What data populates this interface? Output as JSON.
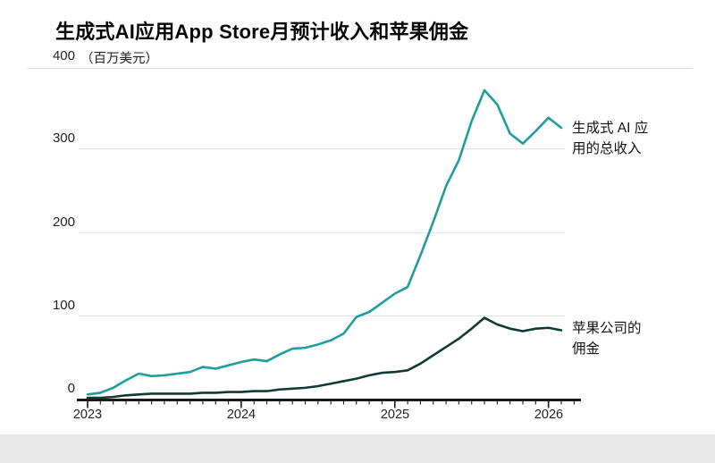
{
  "page": {
    "background": "#e9e9e9",
    "card_background": "#ffffff"
  },
  "header": {
    "title": "生成式AI应用App Store月预计收入和苹果佣金"
  },
  "y_axis": {
    "top_tick": "400",
    "unit": "（百万美元）",
    "ticks": {
      "t300": "300",
      "t200": "200",
      "t100": "100",
      "t0": "0"
    }
  },
  "x_axis": {
    "years": [
      "2023",
      "2024",
      "2025",
      "2026"
    ]
  },
  "annotations": {
    "revenue_line1": "生成式 AI 应",
    "revenue_line2": "用的总收入",
    "commission_line1": "苹果公司的",
    "commission_line2": "佣金"
  },
  "chart_data": {
    "type": "line",
    "title": "生成式AI应用App Store月预计收入和苹果佣金",
    "unit": "百万美元",
    "ylabel": "百万美元",
    "xlabel": "",
    "ylim": [
      0,
      400
    ],
    "yticks": [
      0,
      100,
      200,
      300,
      400
    ],
    "grid": true,
    "legend_position": "right-of-line-end",
    "x": [
      "2023-01",
      "2023-02",
      "2023-03",
      "2023-04",
      "2023-05",
      "2023-06",
      "2023-07",
      "2023-08",
      "2023-09",
      "2023-10",
      "2023-11",
      "2023-12",
      "2024-01",
      "2024-02",
      "2024-03",
      "2024-04",
      "2024-05",
      "2024-06",
      "2024-07",
      "2024-08",
      "2024-09",
      "2024-10",
      "2024-11",
      "2024-12",
      "2025-01",
      "2025-02",
      "2025-03",
      "2025-04",
      "2025-05",
      "2025-06",
      "2025-07",
      "2025-08",
      "2025-09",
      "2025-10",
      "2025-11",
      "2025-12",
      "2026-01",
      "2026-02"
    ],
    "series": [
      {
        "name": "生成式 AI 应用的总收入",
        "color": "#1f9d9d",
        "stroke_width": 2.6,
        "values": [
          5,
          7,
          13,
          22,
          30,
          27,
          28,
          30,
          32,
          38,
          36,
          40,
          44,
          47,
          45,
          53,
          60,
          61,
          65,
          70,
          78,
          98,
          104,
          115,
          126,
          134,
          172,
          212,
          255,
          286,
          333,
          370,
          353,
          318,
          306,
          321,
          337,
          325
        ]
      },
      {
        "name": "苹果公司的佣金",
        "color": "#123a32",
        "stroke_width": 2.6,
        "values": [
          1,
          1,
          2,
          4,
          5,
          6,
          6,
          6,
          6,
          7,
          7,
          8,
          8,
          9,
          9,
          11,
          12,
          13,
          15,
          18,
          21,
          24,
          28,
          31,
          32,
          34,
          42,
          52,
          62,
          72,
          84,
          97,
          89,
          84,
          81,
          84,
          85,
          82
        ]
      }
    ]
  }
}
